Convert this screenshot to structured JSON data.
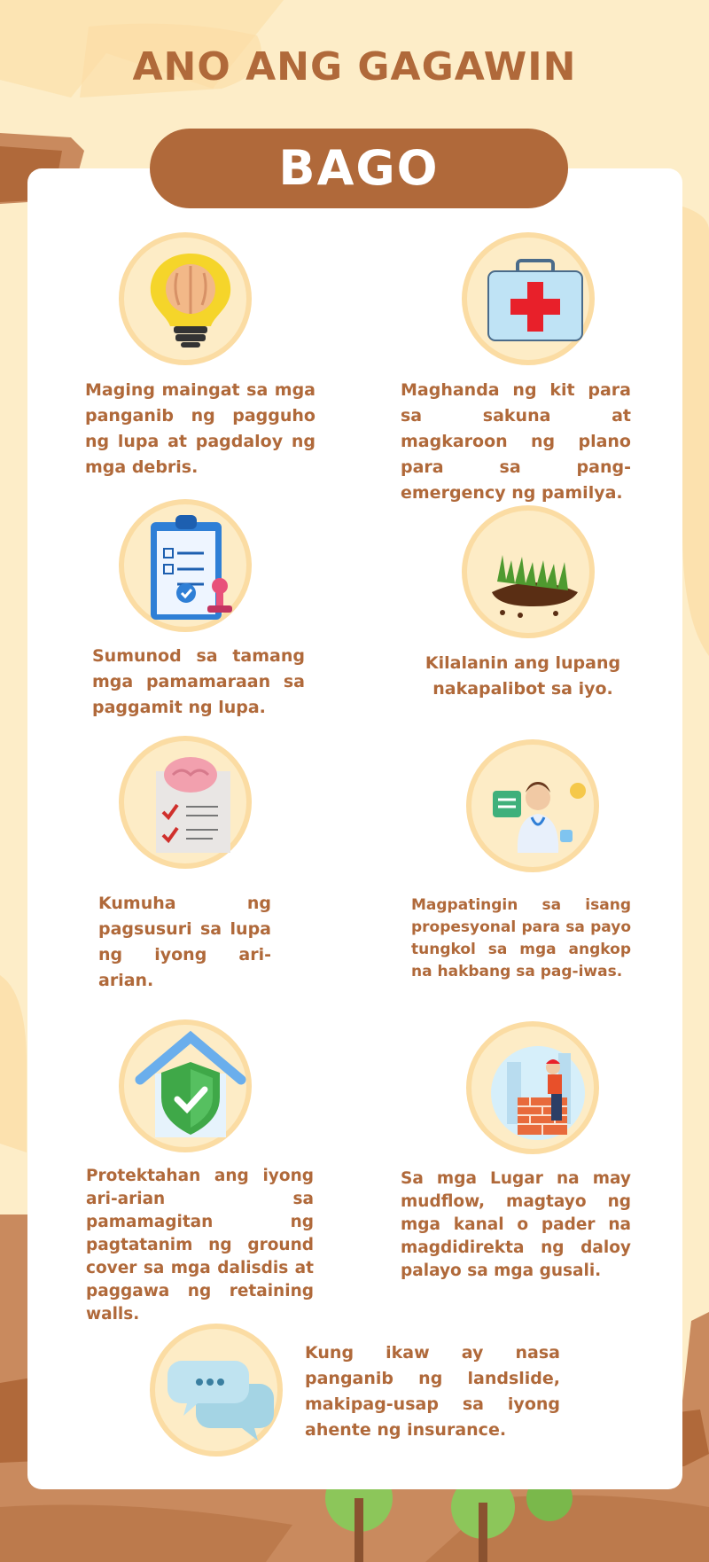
{
  "header": {
    "title": "ANO ANG GAGAWIN",
    "banner": "BAGO"
  },
  "colors": {
    "accent": "#b0693a",
    "background": "#fdedc8",
    "circle_fill": "#fdecc6",
    "circle_ring": "#fbdca3"
  },
  "items": [
    {
      "icon": "lightbulb-brain-icon",
      "text": "Maging maingat sa mga panganib ng pagguho ng lupa at pagdaloy ng mga debris."
    },
    {
      "icon": "first-aid-kit-icon",
      "text": "Maghanda ng kit para sa sakuna at magkaroon ng plano para sa pang-emergency ng pamilya."
    },
    {
      "icon": "clipboard-checklist-icon",
      "text": "Sumunod sa tamang mga pamamaraan sa paggamit ng lupa."
    },
    {
      "icon": "soil-grass-icon",
      "text": "Kilalanin ang lupang nakapalibot sa iyo."
    },
    {
      "icon": "brain-checklist-icon",
      "text": "Kumuha ng pagsusuri sa lupa ng iyong ari-arian."
    },
    {
      "icon": "doctor-consultant-icon",
      "text": "Magpatingin sa isang propesyonal para sa payo tungkol sa mga angkop na hakbang sa pag-iwas."
    },
    {
      "icon": "house-shield-icon",
      "text": "Protektahan ang iyong ari-arian sa pamamagitan ng pagtatanim ng ground cover sa mga dalisdis at paggawa ng retaining walls."
    },
    {
      "icon": "bricklayer-wall-icon",
      "text": "Sa mga Lugar na may mudflow, magtayo ng mga kanal o pader na magdidirekta ng daloy palayo sa mga gusali."
    },
    {
      "icon": "chat-bubbles-icon",
      "text": "Kung ikaw ay nasa panganib ng landslide, makipag-usap sa iyong ahente ng insurance."
    }
  ]
}
